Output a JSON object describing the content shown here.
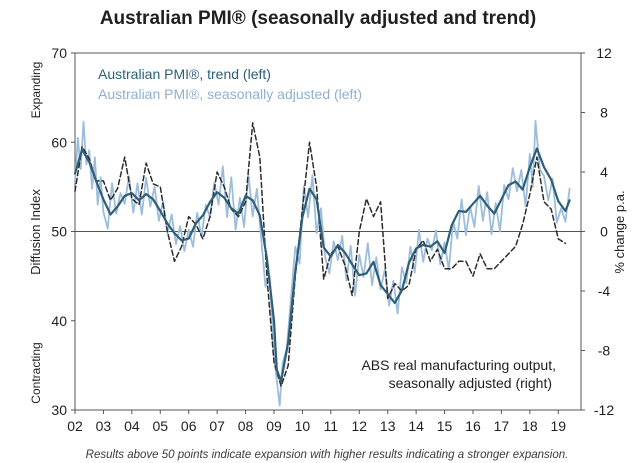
{
  "chart_data": {
    "type": "line",
    "title": "Australian PMI® (seasonally adjusted and trend)",
    "ylabel_left": "Diffusion Index",
    "ylabel_right": "% change p.a.",
    "label_expanding": "Expanding",
    "label_contracting": "Contracting",
    "ylim_left": [
      30,
      70
    ],
    "ylim_right": [
      -12,
      12
    ],
    "xlim": [
      2002,
      2019.8
    ],
    "reference_line": 50,
    "left_ticks": [
      "70",
      "60",
      "50",
      "40",
      "30"
    ],
    "right_ticks": [
      "12",
      "8",
      "4",
      "0",
      "-4",
      "-8",
      "-12"
    ],
    "x_ticks": [
      "02",
      "03",
      "04",
      "05",
      "06",
      "07",
      "08",
      "09",
      "10",
      "11",
      "12",
      "13",
      "14",
      "15",
      "16",
      "17",
      "18",
      "19"
    ],
    "annotation": [
      "ABS real manufacturing output,",
      "seasonally adjusted (right)"
    ],
    "footnote": "Results above 50 points indicate expansion with higher results indicating a stronger expansion.",
    "series": [
      {
        "name": "Australian PMI®, trend (left)",
        "axis": "left",
        "color": "#2d5f78",
        "x": [
          2002.0,
          2002.25,
          2002.5,
          2002.75,
          2003.0,
          2003.25,
          2003.5,
          2003.75,
          2004.0,
          2004.25,
          2004.5,
          2004.75,
          2005.0,
          2005.25,
          2005.5,
          2005.75,
          2006.0,
          2006.25,
          2006.5,
          2006.75,
          2007.0,
          2007.25,
          2007.5,
          2007.75,
          2008.0,
          2008.25,
          2008.5,
          2008.75,
          2009.0,
          2009.1,
          2009.25,
          2009.5,
          2009.75,
          2010.0,
          2010.25,
          2010.5,
          2010.75,
          2011.0,
          2011.25,
          2011.5,
          2011.75,
          2012.0,
          2012.25,
          2012.5,
          2012.75,
          2013.0,
          2013.25,
          2013.5,
          2013.75,
          2014.0,
          2014.25,
          2014.5,
          2014.75,
          2015.0,
          2015.25,
          2015.5,
          2015.75,
          2016.0,
          2016.25,
          2016.5,
          2016.75,
          2017.0,
          2017.25,
          2017.5,
          2017.75,
          2018.0,
          2018.25,
          2018.5,
          2018.75,
          2019.0,
          2019.25,
          2019.4
        ],
        "values": [
          56.5,
          59.2,
          57.8,
          55.6,
          53.6,
          51.9,
          52.8,
          54.0,
          54.3,
          53.5,
          54.2,
          53.6,
          52.3,
          50.9,
          49.8,
          49.0,
          49.2,
          50.9,
          51.8,
          53.3,
          54.4,
          53.8,
          52.6,
          52.0,
          54.0,
          53.5,
          51.8,
          47.0,
          40.0,
          34.5,
          33.2,
          37.6,
          45.5,
          51.6,
          54.8,
          53.6,
          48.2,
          47.2,
          48.5,
          47.6,
          46.3,
          45.1,
          45.3,
          46.6,
          44.0,
          43.0,
          42.0,
          43.4,
          46.5,
          48.1,
          48.5,
          48.3,
          48.9,
          47.6,
          50.7,
          52.3,
          52.2,
          53.1,
          54.0,
          52.9,
          52.0,
          53.6,
          55.2,
          55.6,
          54.7,
          57.2,
          59.3,
          57.2,
          55.8,
          53.4,
          52.3,
          53.5
        ]
      },
      {
        "name": "Australian PMI®, seasonally adjusted (left)",
        "axis": "left",
        "color": "#9dbddb",
        "x": [
          2002.0,
          2002.1,
          2002.2,
          2002.3,
          2002.4,
          2002.5,
          2002.6,
          2002.7,
          2002.8,
          2002.9,
          2003.0,
          2003.15,
          2003.3,
          2003.45,
          2003.6,
          2003.75,
          2003.9,
          2004.05,
          2004.2,
          2004.35,
          2004.5,
          2004.65,
          2004.8,
          2004.95,
          2005.1,
          2005.25,
          2005.4,
          2005.55,
          2005.7,
          2005.85,
          2006.0,
          2006.15,
          2006.3,
          2006.45,
          2006.6,
          2006.75,
          2006.9,
          2007.05,
          2007.2,
          2007.35,
          2007.5,
          2007.65,
          2007.8,
          2007.95,
          2008.1,
          2008.25,
          2008.4,
          2008.55,
          2008.7,
          2008.85,
          2009.0,
          2009.1,
          2009.2,
          2009.3,
          2009.45,
          2009.6,
          2009.75,
          2009.9,
          2010.05,
          2010.2,
          2010.35,
          2010.5,
          2010.65,
          2010.8,
          2010.95,
          2011.1,
          2011.25,
          2011.4,
          2011.55,
          2011.7,
          2011.85,
          2012.0,
          2012.15,
          2012.3,
          2012.45,
          2012.6,
          2012.75,
          2012.9,
          2013.05,
          2013.2,
          2013.35,
          2013.5,
          2013.65,
          2013.8,
          2013.95,
          2014.1,
          2014.25,
          2014.4,
          2014.55,
          2014.7,
          2014.85,
          2015.0,
          2015.15,
          2015.3,
          2015.45,
          2015.6,
          2015.75,
          2015.9,
          2016.05,
          2016.2,
          2016.35,
          2016.5,
          2016.65,
          2016.8,
          2016.95,
          2017.1,
          2017.25,
          2017.4,
          2017.55,
          2017.7,
          2017.85,
          2018.0,
          2018.1,
          2018.2,
          2018.35,
          2018.5,
          2018.65,
          2018.8,
          2018.95,
          2019.1,
          2019.25,
          2019.4
        ],
        "values": [
          55.5,
          60.5,
          57.0,
          62.3,
          57.5,
          59.1,
          54.8,
          58.3,
          53.0,
          56.1,
          52.2,
          50.3,
          55.4,
          52.0,
          54.3,
          53.1,
          56.2,
          52.1,
          55.4,
          51.9,
          56.0,
          52.8,
          55.0,
          51.2,
          53.4,
          49.8,
          51.9,
          48.6,
          50.6,
          47.8,
          50.2,
          48.3,
          52.1,
          49.4,
          53.0,
          51.6,
          55.5,
          53.0,
          57.3,
          51.6,
          56.1,
          50.2,
          53.8,
          50.5,
          56.4,
          51.7,
          54.8,
          49.2,
          43.8,
          44.9,
          36.2,
          33.3,
          30.5,
          35.2,
          36.9,
          42.6,
          48.3,
          46.4,
          55.1,
          51.6,
          56.3,
          49.8,
          52.6,
          47.1,
          45.3,
          48.9,
          46.8,
          49.5,
          44.5,
          48.4,
          42.8,
          47.4,
          44.9,
          48.7,
          44.0,
          47.1,
          43.5,
          45.8,
          41.7,
          44.5,
          40.8,
          46.0,
          44.2,
          48.3,
          45.4,
          50.2,
          46.6,
          49.2,
          47.9,
          50.1,
          46.3,
          48.8,
          45.7,
          51.1,
          49.2,
          53.6,
          49.6,
          52.8,
          50.5,
          55.1,
          51.2,
          54.4,
          49.7,
          53.2,
          50.0,
          55.2,
          53.6,
          57.1,
          54.5,
          56.9,
          52.8,
          58.7,
          55.0,
          62.4,
          57.0,
          56.2,
          53.5,
          55.9,
          51.0,
          52.6,
          51.1,
          54.8
        ]
      },
      {
        "name": "ABS real manufacturing output, seasonally adjusted (right)",
        "axis": "right",
        "color": "#2b2b2b",
        "dashed": true,
        "x": [
          2002.0,
          2002.25,
          2002.5,
          2002.75,
          2003.0,
          2003.25,
          2003.5,
          2003.75,
          2004.0,
          2004.25,
          2004.5,
          2004.75,
          2005.0,
          2005.25,
          2005.5,
          2005.75,
          2006.0,
          2006.25,
          2006.5,
          2006.75,
          2007.0,
          2007.25,
          2007.5,
          2007.75,
          2008.0,
          2008.25,
          2008.5,
          2008.75,
          2009.0,
          2009.25,
          2009.5,
          2009.75,
          2010.0,
          2010.25,
          2010.5,
          2010.75,
          2011.0,
          2011.25,
          2011.5,
          2011.75,
          2012.0,
          2012.25,
          2012.5,
          2012.75,
          2013.0,
          2013.25,
          2013.5,
          2013.75,
          2014.0,
          2014.25,
          2014.5,
          2014.75,
          2015.0,
          2015.25,
          2015.5,
          2015.75,
          2016.0,
          2016.25,
          2016.5,
          2016.75,
          2017.0,
          2017.25,
          2017.5,
          2017.75,
          2018.0,
          2018.25,
          2018.5,
          2018.75,
          2019.0,
          2019.25
        ],
        "values": [
          2.7,
          5.7,
          4.9,
          3.4,
          3.4,
          2.1,
          2.9,
          5.0,
          2.2,
          1.8,
          4.6,
          3.2,
          3.0,
          0.0,
          -2.0,
          -1.0,
          1.0,
          0.5,
          -0.5,
          1.0,
          4.0,
          3.0,
          1.5,
          1.0,
          2.0,
          7.3,
          5.0,
          -3.0,
          -8.8,
          -10.4,
          -9.0,
          -3.0,
          1.5,
          6.0,
          3.0,
          -3.2,
          -1.5,
          -1.0,
          -2.3,
          -4.3,
          0.0,
          2.2,
          1.0,
          2.0,
          -4.5,
          -3.5,
          -4.0,
          -3.6,
          -1.2,
          -0.6,
          -2.0,
          -1.2,
          -2.5,
          -2.5,
          -2.0,
          -2.0,
          -3.0,
          -1.5,
          -2.5,
          -2.5,
          -2.0,
          -1.5,
          -1.0,
          0.5,
          2.5,
          5.0,
          2.0,
          1.5,
          -0.5,
          -0.8
        ]
      }
    ]
  }
}
